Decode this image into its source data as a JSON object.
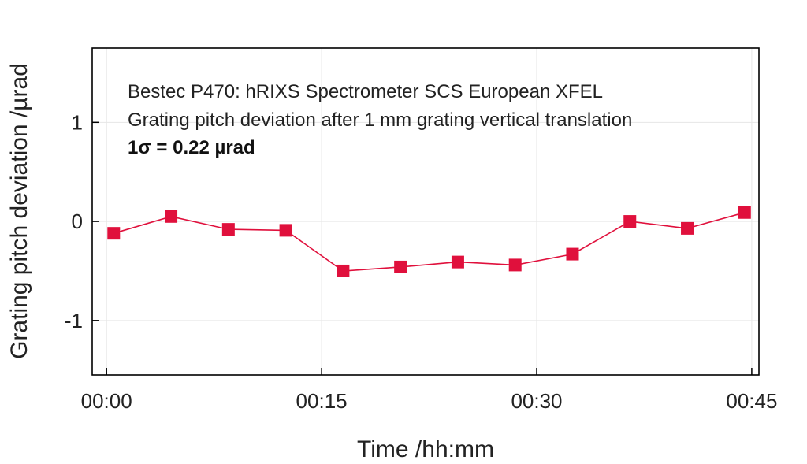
{
  "chart_data": {
    "type": "line",
    "title": "",
    "xlabel": "Time /hh:mm",
    "ylabel": "Grating pitch deviation /µrad",
    "annotations": [
      "Bestec P470: hRIXS Spectrometer SCS European XFEL",
      "Grating pitch deviation after 1 mm grating vertical translation",
      "1σ = 0.22 µrad"
    ],
    "x_tick_labels": [
      "00:00",
      "00:15",
      "00:30",
      "00:45"
    ],
    "x_ticks": [
      0,
      15,
      30,
      45
    ],
    "y_tick_labels": [
      "1",
      "0",
      "-1"
    ],
    "y_ticks": [
      1,
      0,
      -1
    ],
    "xlim": [
      -1,
      45.5
    ],
    "ylim": [
      -1.55,
      1.75
    ],
    "grid": true,
    "marker": "square",
    "series_color": "#e0103c",
    "series": [
      {
        "x": [
          0.5,
          4.5,
          8.5,
          12.5,
          16.5,
          20.5,
          24.5,
          28.5,
          32.5,
          36.5,
          40.5,
          44.5
        ],
        "y": [
          -0.12,
          0.05,
          -0.08,
          -0.09,
          -0.5,
          -0.46,
          -0.41,
          -0.44,
          -0.33,
          0.0,
          -0.07,
          0.09
        ]
      }
    ]
  }
}
